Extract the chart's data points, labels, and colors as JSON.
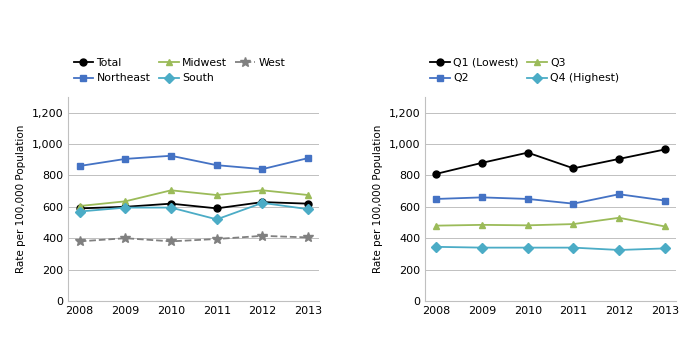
{
  "years": [
    2008,
    2009,
    2010,
    2011,
    2012,
    2013
  ],
  "left_chart": {
    "Total": [
      590,
      600,
      620,
      590,
      630,
      620
    ],
    "Northeast": [
      860,
      905,
      925,
      865,
      840,
      910
    ],
    "Midwest": [
      605,
      635,
      705,
      675,
      705,
      675
    ],
    "South": [
      570,
      595,
      595,
      520,
      625,
      585
    ],
    "West": [
      380,
      400,
      380,
      395,
      415,
      405
    ]
  },
  "right_chart": {
    "Q1 (Lowest)": [
      810,
      880,
      945,
      845,
      905,
      965
    ],
    "Q2": [
      650,
      660,
      650,
      620,
      680,
      640
    ],
    "Q3": [
      480,
      485,
      482,
      490,
      530,
      475
    ],
    "Q4 (Highest)": [
      345,
      340,
      340,
      340,
      325,
      335
    ]
  },
  "left_colors": {
    "Total": "#000000",
    "Northeast": "#4472C4",
    "Midwest": "#9BBB59",
    "South": "#4BACC6",
    "West": "#808080"
  },
  "right_colors": {
    "Q1 (Lowest)": "#000000",
    "Q2": "#4472C4",
    "Q3": "#9BBB59",
    "Q4 (Highest)": "#4BACC6"
  },
  "left_markers": {
    "Total": "o",
    "Northeast": "s",
    "Midwest": "^",
    "South": "D",
    "West": "*"
  },
  "right_markers": {
    "Q1 (Lowest)": "o",
    "Q2": "s",
    "Q3": "^",
    "Q4 (Highest)": "D"
  },
  "left_styles": {
    "Total": "-",
    "Northeast": "-",
    "Midwest": "-",
    "South": "-",
    "West": "--"
  },
  "right_styles": {
    "Q1 (Lowest)": "-",
    "Q2": "-",
    "Q3": "-",
    "Q4 (Highest)": "-"
  },
  "ylabel": "Rate per 100,000 Population",
  "ylim": [
    0,
    1300
  ],
  "yticks": [
    0,
    200,
    400,
    600,
    800,
    1000,
    1200
  ],
  "ytick_labels": [
    "0",
    "200",
    "400",
    "600",
    "800",
    "1,000",
    "1,200"
  ],
  "left_legend_rows": [
    [
      "Total",
      "Northeast",
      "Midwest"
    ],
    [
      "South",
      "West"
    ]
  ],
  "right_legend_rows": [
    [
      "Q1 (Lowest)",
      "Q2"
    ],
    [
      "Q3",
      "Q4 (Highest)"
    ]
  ]
}
